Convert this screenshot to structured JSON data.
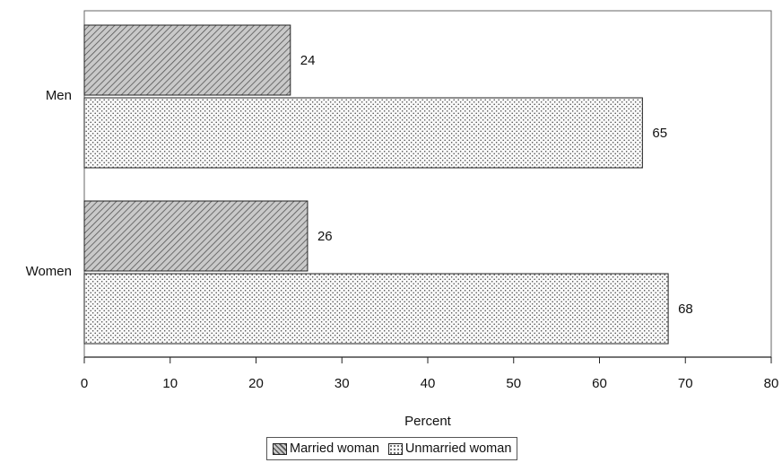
{
  "chart_data": {
    "type": "bar",
    "orientation": "horizontal",
    "categories": [
      "Men",
      "Women"
    ],
    "series": [
      {
        "name": "Married woman",
        "values": [
          24,
          26
        ],
        "pattern": "diagonal-hatch"
      },
      {
        "name": "Unmarried woman",
        "values": [
          65,
          68
        ],
        "pattern": "dots"
      }
    ],
    "xlabel": "Percent",
    "ylabel": "",
    "xlim": [
      0,
      80
    ],
    "xticks": [
      "0",
      "10",
      "20",
      "30",
      "40",
      "50",
      "60",
      "70",
      "80"
    ],
    "grid": false,
    "legend_position": "bottom",
    "colors": {
      "married_fill": "#c8c8c8",
      "unmarried_fill": "#f4f4f4",
      "stroke": "#222222"
    }
  }
}
